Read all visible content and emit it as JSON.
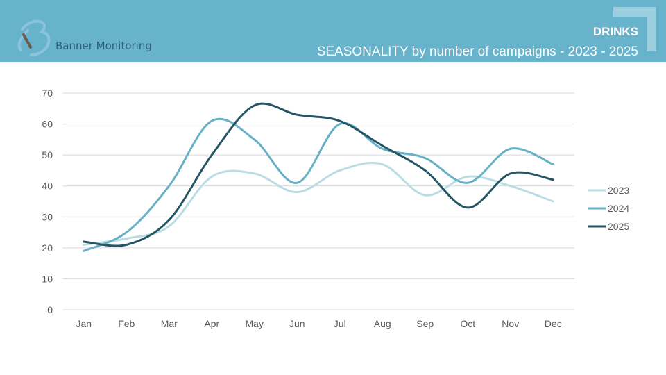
{
  "header": {
    "brand": "Banner Monitoring",
    "category": "DRINKS",
    "title": "SEASONALITY by number of campaigns - 2023 - 2025",
    "background_color": "#67b3cb"
  },
  "chart_data": {
    "type": "line",
    "title": "",
    "xlabel": "",
    "ylabel": "",
    "categories": [
      "Jan",
      "Feb",
      "Mar",
      "Apr",
      "May",
      "Jun",
      "Jul",
      "Aug",
      "Sep",
      "Oct",
      "Nov",
      "Dec"
    ],
    "ylim": [
      0,
      70
    ],
    "yticks": [
      0,
      10,
      20,
      30,
      40,
      50,
      60,
      70
    ],
    "grid": true,
    "smooth": true,
    "legend_position": "right",
    "series": [
      {
        "name": "2023",
        "color": "#b9dce5",
        "values": [
          21,
          23,
          27,
          43,
          44,
          38,
          45,
          47,
          37,
          43,
          40,
          35
        ]
      },
      {
        "name": "2024",
        "color": "#67b0c6",
        "values": [
          19,
          25,
          40,
          61,
          55,
          41,
          60,
          52,
          49,
          41,
          52,
          47
        ]
      },
      {
        "name": "2025",
        "color": "#255565",
        "values": [
          22,
          21,
          29,
          50,
          66,
          63,
          61,
          53,
          45,
          33,
          44,
          42
        ]
      }
    ]
  }
}
